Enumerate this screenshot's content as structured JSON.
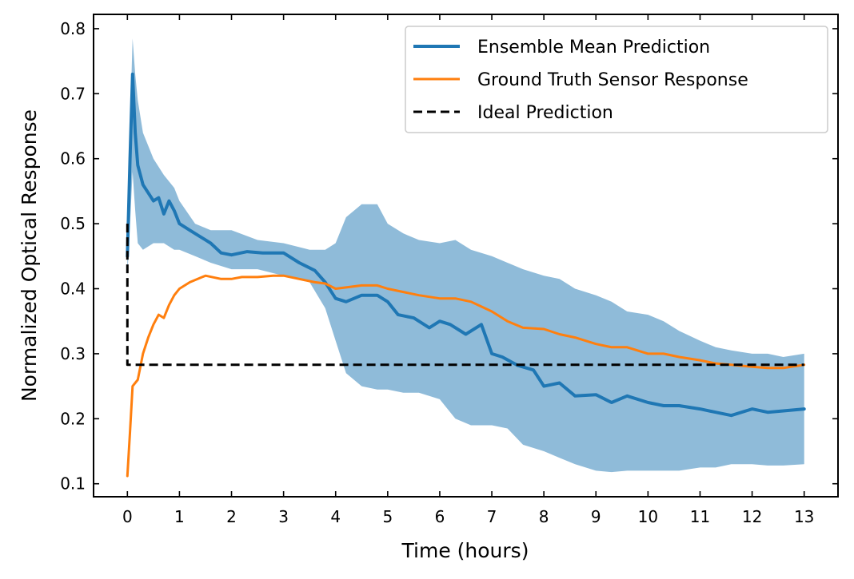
{
  "chart_data": {
    "type": "line",
    "title": "",
    "xlabel": "Time (hours)",
    "ylabel": "Normalized Optical Response",
    "xlim": [
      -0.65,
      13.65
    ],
    "ylim": [
      0.08,
      0.822
    ],
    "x_ticks": [
      0,
      1,
      2,
      3,
      4,
      5,
      6,
      7,
      8,
      9,
      10,
      11,
      12,
      13
    ],
    "y_ticks": [
      0.1,
      0.2,
      0.3,
      0.4,
      0.5,
      0.6,
      0.7,
      0.8
    ],
    "grid": false,
    "legend_position": "top-right",
    "series": [
      {
        "name": "Ensemble Mean Prediction",
        "color": "#1f77b4",
        "x": [
          0.0,
          0.05,
          0.1,
          0.15,
          0.2,
          0.3,
          0.5,
          0.6,
          0.7,
          0.8,
          0.9,
          1.0,
          1.2,
          1.4,
          1.6,
          1.8,
          2.0,
          2.3,
          2.6,
          3.0,
          3.3,
          3.6,
          3.8,
          4.0,
          4.2,
          4.5,
          4.8,
          5.0,
          5.2,
          5.5,
          5.8,
          6.0,
          6.2,
          6.5,
          6.8,
          7.0,
          7.2,
          7.5,
          7.8,
          8.0,
          8.3,
          8.6,
          9.0,
          9.3,
          9.6,
          10.0,
          10.3,
          10.6,
          11.0,
          11.3,
          11.6,
          12.0,
          12.3,
          12.6,
          13.0
        ],
        "values": [
          0.45,
          0.6,
          0.73,
          0.64,
          0.59,
          0.56,
          0.535,
          0.54,
          0.515,
          0.535,
          0.52,
          0.5,
          0.49,
          0.48,
          0.47,
          0.455,
          0.452,
          0.457,
          0.455,
          0.455,
          0.44,
          0.428,
          0.41,
          0.385,
          0.38,
          0.39,
          0.39,
          0.38,
          0.36,
          0.355,
          0.34,
          0.35,
          0.345,
          0.33,
          0.345,
          0.3,
          0.295,
          0.282,
          0.275,
          0.25,
          0.255,
          0.235,
          0.237,
          0.225,
          0.235,
          0.225,
          0.22,
          0.22,
          0.215,
          0.21,
          0.205,
          0.215,
          0.21,
          0.212,
          0.215
        ]
      },
      {
        "name": "Ground Truth Sensor Response",
        "color": "#ff7f0e",
        "x": [
          0.0,
          0.05,
          0.1,
          0.2,
          0.3,
          0.4,
          0.5,
          0.6,
          0.7,
          0.8,
          0.9,
          1.0,
          1.2,
          1.5,
          1.8,
          2.0,
          2.2,
          2.5,
          2.8,
          3.0,
          3.3,
          3.6,
          3.8,
          4.0,
          4.2,
          4.5,
          4.8,
          5.0,
          5.3,
          5.6,
          6.0,
          6.3,
          6.6,
          7.0,
          7.3,
          7.6,
          8.0,
          8.3,
          8.6,
          9.0,
          9.3,
          9.6,
          10.0,
          10.3,
          10.6,
          11.0,
          11.3,
          11.6,
          12.0,
          12.3,
          12.6,
          13.0
        ],
        "values": [
          0.112,
          0.18,
          0.25,
          0.26,
          0.3,
          0.325,
          0.345,
          0.36,
          0.355,
          0.375,
          0.39,
          0.4,
          0.41,
          0.42,
          0.415,
          0.415,
          0.418,
          0.418,
          0.42,
          0.42,
          0.415,
          0.41,
          0.408,
          0.4,
          0.402,
          0.405,
          0.405,
          0.4,
          0.395,
          0.39,
          0.385,
          0.385,
          0.38,
          0.365,
          0.35,
          0.34,
          0.338,
          0.33,
          0.325,
          0.315,
          0.31,
          0.31,
          0.3,
          0.3,
          0.295,
          0.29,
          0.285,
          0.283,
          0.28,
          0.278,
          0.278,
          0.283
        ]
      },
      {
        "name": "Ideal Prediction",
        "color": "#000000",
        "style": "dashed",
        "x": [
          0.0,
          0.0,
          13.0
        ],
        "values": [
          0.5,
          0.283,
          0.283
        ]
      }
    ],
    "band": {
      "color": "#1f77b4",
      "opacity": 0.5,
      "x": [
        0.0,
        0.05,
        0.1,
        0.15,
        0.2,
        0.3,
        0.5,
        0.7,
        0.9,
        1.0,
        1.3,
        1.6,
        2.0,
        2.5,
        3.0,
        3.5,
        3.8,
        4.0,
        4.2,
        4.5,
        4.8,
        5.0,
        5.3,
        5.6,
        6.0,
        6.3,
        6.6,
        7.0,
        7.3,
        7.6,
        8.0,
        8.3,
        8.6,
        9.0,
        9.3,
        9.6,
        10.0,
        10.3,
        10.6,
        11.0,
        11.3,
        11.6,
        12.0,
        12.3,
        12.6,
        13.0
      ],
      "upper": [
        0.5,
        0.65,
        0.785,
        0.73,
        0.69,
        0.64,
        0.6,
        0.575,
        0.555,
        0.535,
        0.5,
        0.49,
        0.49,
        0.475,
        0.47,
        0.46,
        0.46,
        0.47,
        0.51,
        0.53,
        0.53,
        0.5,
        0.485,
        0.475,
        0.47,
        0.475,
        0.46,
        0.45,
        0.44,
        0.43,
        0.42,
        0.415,
        0.4,
        0.39,
        0.38,
        0.365,
        0.36,
        0.35,
        0.335,
        0.32,
        0.31,
        0.305,
        0.3,
        0.3,
        0.295,
        0.3
      ],
      "lower": [
        0.42,
        0.5,
        0.58,
        0.52,
        0.47,
        0.46,
        0.47,
        0.47,
        0.46,
        0.46,
        0.45,
        0.44,
        0.43,
        0.43,
        0.42,
        0.41,
        0.37,
        0.32,
        0.27,
        0.25,
        0.245,
        0.245,
        0.24,
        0.24,
        0.23,
        0.2,
        0.19,
        0.19,
        0.185,
        0.16,
        0.15,
        0.14,
        0.13,
        0.12,
        0.118,
        0.12,
        0.12,
        0.12,
        0.12,
        0.125,
        0.125,
        0.13,
        0.13,
        0.128,
        0.128,
        0.13
      ]
    }
  }
}
